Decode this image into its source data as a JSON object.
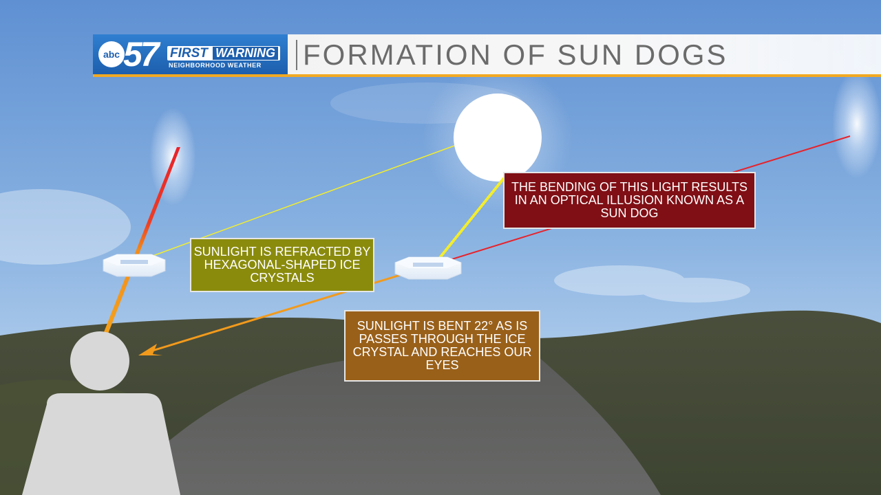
{
  "header": {
    "logo": {
      "network": "abc",
      "channel": "57",
      "first": "FIRST",
      "warning": "WARNING",
      "tagline": "NEIGHBORHOOD WEATHER"
    },
    "title": "FORMATION OF SUN DOGS"
  },
  "callouts": {
    "refracted": "SUNLIGHT IS REFRACTED BY HEXAGONAL-SHAPED ICE CRYSTALS",
    "illusion": "THE BENDING OF THIS LIGHT RESULTS IN AN OPTICAL ILLUSION KNOWN AS A SUN DOG",
    "bent": "SUNLIGHT IS BENT 22° AS IS PASSES THROUGH THE ICE CRYSTAL AND REACHES OUR EYES"
  },
  "colors": {
    "brand_blue": "#1d5fae",
    "accent_gold": "#f2a922",
    "refracted_box": "#8a8b0d",
    "illusion_box": "#7f0f15",
    "bent_box": "#99601a",
    "ray_yellow": "#f5ee2a",
    "ray_red": "#e8222a",
    "ray_orange": "#f29a1c"
  },
  "icons": [
    "sun-icon",
    "sun-dog-glow",
    "ice-crystal-icon",
    "person-silhouette-icon"
  ]
}
